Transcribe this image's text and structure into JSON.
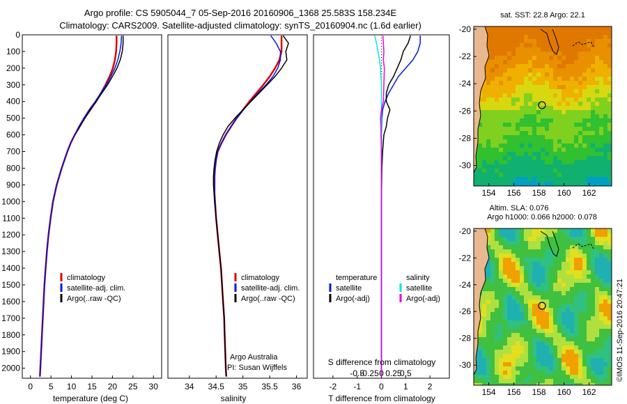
{
  "header": {
    "title_line1": "Argo profile: CS 5905044_7 05-Sep-2016 20160906_1368 25.583S 158.234E",
    "title_line2": "Climatology: CARS2009. Satellite-adjusted climatology: synTS_20160904.nc (1.6d earlier)"
  },
  "colors": {
    "climatology": "#dd0000",
    "satellite": "#0018e0",
    "argo": "#000000",
    "salinity_satellite": "#00e6e6",
    "salinity_argo": "#e600e6"
  },
  "chart_data": [
    {
      "type": "line",
      "panel": "temperature",
      "xlabel": "temperature (deg C)",
      "ylabel": "",
      "xlim": [
        -2,
        32
      ],
      "ylim": [
        2060,
        0
      ],
      "xticks": [
        "0",
        "5",
        "10",
        "15",
        "20",
        "25",
        "30"
      ],
      "yticks": [
        "0",
        "100",
        "200",
        "300",
        "400",
        "500",
        "600",
        "700",
        "800",
        "900",
        "1000",
        "1100",
        "1200",
        "1300",
        "1400",
        "1500",
        "1600",
        "1700",
        "1800",
        "1900",
        "2000"
      ],
      "legend": [
        "climatology",
        "satellite-adj. clim.",
        "Argo(..raw -QC)"
      ],
      "series": [
        {
          "name": "climatology",
          "depth": [
            5,
            50,
            100,
            150,
            200,
            250,
            300,
            350,
            400,
            450,
            500,
            550,
            600,
            650,
            700,
            800,
            900,
            1000,
            1100,
            1200,
            1300,
            1400,
            1500,
            1600,
            1700,
            1800,
            1900,
            2000,
            2050
          ],
          "values": [
            21.0,
            21.0,
            20.9,
            20.6,
            20.1,
            19.3,
            18.3,
            17.2,
            16.0,
            14.6,
            13.2,
            12.0,
            10.8,
            9.8,
            9.0,
            7.6,
            6.4,
            5.5,
            4.9,
            4.4,
            4.0,
            3.7,
            3.4,
            3.2,
            3.0,
            2.8,
            2.6,
            2.4,
            2.3
          ]
        },
        {
          "name": "satellite-adj. clim.",
          "depth": [
            5,
            50,
            100,
            150,
            200,
            250,
            300,
            350,
            400,
            450,
            500,
            550,
            600,
            650,
            700,
            800,
            900,
            1000,
            1100,
            1200,
            1300,
            1400,
            1500,
            1600,
            1700,
            1800,
            1900,
            2000,
            2050
          ],
          "values": [
            22.6,
            22.6,
            22.4,
            21.9,
            21.1,
            20.0,
            18.8,
            17.4,
            16.0,
            14.6,
            13.2,
            12.0,
            10.8,
            9.8,
            9.0,
            7.6,
            6.4,
            5.5,
            4.9,
            4.4,
            4.0,
            3.7,
            3.4,
            3.2,
            3.0,
            2.8,
            2.6,
            2.4,
            2.3
          ]
        },
        {
          "name": "Argo(..raw -QC)",
          "depth": [
            5,
            50,
            100,
            150,
            200,
            250,
            300,
            350,
            400,
            450,
            500,
            550,
            600,
            650,
            700,
            800,
            900,
            1000,
            1100,
            1200,
            1300,
            1400,
            1500,
            1600,
            1700,
            1800,
            1900,
            2000,
            2050
          ],
          "values": [
            22.2,
            22.1,
            21.8,
            21.3,
            20.6,
            19.6,
            18.5,
            17.1,
            15.8,
            14.3,
            13.0,
            11.8,
            10.8,
            9.8,
            9.0,
            7.6,
            6.4,
            5.5,
            4.9,
            4.4,
            4.0,
            3.7,
            3.4,
            3.2,
            3.0,
            2.8,
            2.6,
            2.4,
            2.3
          ]
        }
      ]
    },
    {
      "type": "line",
      "panel": "salinity",
      "xlabel": "salinity",
      "xlim": [
        33.6,
        36.2
      ],
      "ylim": [
        2060,
        0
      ],
      "xticks": [
        "34",
        "34.5",
        "35",
        "35.5",
        "36"
      ],
      "legend": [
        "climatology",
        "satellite-adj. clim.",
        "Argo(..raw -QC)"
      ],
      "annotation_1": "Argo Australia",
      "annotation_2": "PI: Susan Wijffels",
      "series": [
        {
          "name": "climatology",
          "depth": [
            5,
            50,
            100,
            150,
            200,
            250,
            300,
            350,
            400,
            450,
            500,
            550,
            600,
            650,
            700,
            750,
            800,
            850,
            900,
            950,
            1000,
            1100,
            1200,
            1300,
            1400,
            1500,
            1600,
            1700,
            1800,
            1900,
            2000,
            2050
          ],
          "values": [
            35.72,
            35.72,
            35.72,
            35.68,
            35.6,
            35.5,
            35.38,
            35.25,
            35.12,
            35.0,
            34.88,
            34.78,
            34.68,
            34.6,
            34.53,
            34.5,
            34.48,
            34.47,
            34.47,
            34.47,
            34.48,
            34.5,
            34.53,
            34.56,
            34.59,
            34.61,
            34.63,
            34.65,
            34.66,
            34.67,
            34.68,
            34.69
          ]
        },
        {
          "name": "satellite-adj. clim.",
          "depth": [
            5,
            50,
            100,
            150,
            200,
            250,
            300,
            350,
            400,
            450,
            500,
            550,
            600,
            650,
            700,
            750,
            800,
            850,
            900,
            950,
            1000,
            1100,
            1200,
            1300,
            1400,
            1500,
            1600,
            1700,
            1800,
            1900,
            2000,
            2050
          ],
          "values": [
            35.52,
            35.62,
            35.7,
            35.7,
            35.65,
            35.56,
            35.43,
            35.28,
            35.14,
            35.01,
            34.89,
            34.78,
            34.68,
            34.6,
            34.53,
            34.5,
            34.48,
            34.47,
            34.47,
            34.47,
            34.48,
            34.5,
            34.53,
            34.56,
            34.59,
            34.61,
            34.63,
            34.65,
            34.66,
            34.67,
            34.68,
            34.69
          ]
        },
        {
          "name": "Argo(..raw -QC)",
          "depth": [
            5,
            50,
            100,
            150,
            200,
            250,
            300,
            350,
            400,
            450,
            500,
            550,
            600,
            650,
            700,
            750,
            800,
            850,
            900,
            950,
            1000,
            1100,
            1200,
            1300,
            1400,
            1500,
            1600,
            1700,
            1800,
            1900,
            2000,
            2050
          ],
          "values": [
            35.75,
            35.85,
            35.8,
            35.82,
            35.72,
            35.6,
            35.45,
            35.3,
            35.15,
            35.0,
            34.85,
            34.72,
            34.63,
            34.56,
            34.51,
            34.48,
            34.46,
            34.45,
            34.45,
            34.46,
            34.47,
            34.5,
            34.53,
            34.56,
            34.59,
            34.61,
            34.63,
            34.65,
            34.66,
            34.67,
            34.68,
            34.69
          ]
        }
      ]
    },
    {
      "type": "line",
      "panel": "difference",
      "xlabel": "T difference from climatology",
      "xlabel_top": "S difference from climatology",
      "xlim": [
        -2.8,
        2.8
      ],
      "ylim": [
        2060,
        0
      ],
      "xticks": [
        "-2",
        "-1",
        "0",
        "1",
        "2"
      ],
      "xticks_s": [
        "-0.5",
        "-0.25",
        "0",
        "0.25",
        "0.5"
      ],
      "legend_title_t": "temperature",
      "legend_title_s": "salinity",
      "legend": [
        "satellite",
        "Argo(-adj)",
        "satellite",
        "Argo(-adj)"
      ],
      "series": [
        {
          "name": "T satellite",
          "depth": [
            5,
            50,
            100,
            150,
            200,
            250,
            300,
            350,
            400,
            450,
            500,
            600,
            700,
            800,
            1000,
            1500,
            2050
          ],
          "values": [
            1.6,
            1.6,
            1.5,
            1.3,
            1.0,
            0.7,
            0.5,
            0.3,
            0.15,
            0.05,
            0.02,
            0.0,
            0.0,
            0.0,
            0.0,
            0.0,
            0.0
          ]
        },
        {
          "name": "T Argo(-adj)",
          "depth": [
            5,
            50,
            100,
            150,
            200,
            250,
            300,
            350,
            400,
            450,
            500,
            550,
            600,
            700,
            800,
            1000,
            1500,
            2050
          ],
          "values": [
            1.2,
            1.1,
            0.9,
            0.8,
            0.65,
            0.5,
            0.3,
            0.2,
            0.2,
            0.35,
            0.25,
            0.2,
            0.1,
            0.05,
            0.02,
            0.0,
            0.0,
            0.0
          ]
        },
        {
          "name": "S satellite",
          "depth": [
            5,
            50,
            100,
            150,
            200,
            300,
            400,
            500,
            700,
            1000,
            1500,
            2050
          ],
          "values": [
            -0.14,
            -0.1,
            -0.07,
            -0.04,
            -0.02,
            0.0,
            0.0,
            0.0,
            0.0,
            0.0,
            0.0,
            0.0
          ]
        },
        {
          "name": "S Argo(-adj)",
          "depth": [
            5,
            50,
            100,
            150,
            200,
            300,
            400,
            450,
            500,
            550,
            600,
            700,
            800,
            1000,
            1500,
            2050
          ],
          "values": [
            0.03,
            0.04,
            0.05,
            0.04,
            0.06,
            0.05,
            0.04,
            0.0,
            -0.02,
            -0.01,
            -0.01,
            0.0,
            0.0,
            0.0,
            0.0,
            0.0
          ]
        }
      ]
    },
    {
      "type": "heatmap",
      "panel": "sst_map",
      "title": "sat. SST: 22.8 Argo: 22.1",
      "xticks": [
        "154",
        "156",
        "158",
        "160",
        "162"
      ],
      "yticks": [
        "-20",
        "-22",
        "-24",
        "-26",
        "-28",
        "-30"
      ],
      "xlim": [
        152.8,
        163.8
      ],
      "ylim": [
        -31.5,
        -19.8
      ],
      "argo_position": {
        "lon": 158.234,
        "lat": -25.583
      }
    },
    {
      "type": "heatmap",
      "panel": "sla_map",
      "title_line1": "Altim. SLA: 0.076",
      "title_line2": "Argo h1000: 0.066 h2000: 0.078",
      "xticks": [
        "154",
        "156",
        "158",
        "160",
        "162"
      ],
      "yticks": [
        "-20",
        "-22",
        "-24",
        "-26",
        "-28",
        "-30"
      ],
      "xlim": [
        152.8,
        163.8
      ],
      "ylim": [
        -31.5,
        -19.8
      ],
      "argo_position": {
        "lon": 158.234,
        "lat": -25.583
      }
    }
  ],
  "footer": {
    "credit": "©IMOS 11-Sep-2016 20:47:21"
  }
}
